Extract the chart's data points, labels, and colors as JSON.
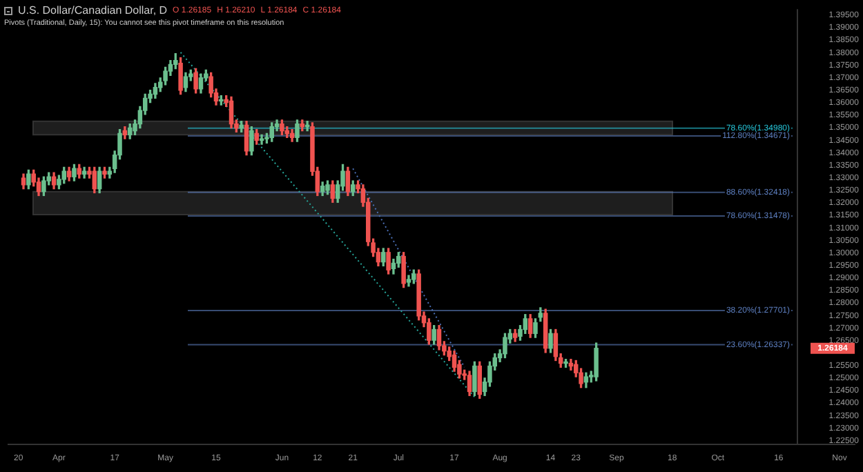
{
  "chart_data": {
    "type": "candlestick",
    "title": "U.S. Dollar/Canadian Dollar, D",
    "subtitle": "Pivots (Traditional, Daily, 15): You cannot see this pivot timeframe on this resolution",
    "annotations": [
      "O 1.26185",
      "H 1.26210",
      "L 1.26184",
      "C 1.26184",
      "1.26184"
    ],
    "categories": [
      null,
      null,
      "20",
      null,
      null,
      null,
      null,
      null,
      null,
      null,
      "Apr",
      null,
      null,
      null,
      null,
      null,
      null,
      null,
      null,
      null,
      null,
      "17",
      null,
      null,
      null,
      null,
      null,
      null,
      null,
      null,
      null,
      "May",
      null,
      null,
      null,
      null,
      null,
      null,
      null,
      null,
      null,
      "15",
      null,
      null,
      null,
      null,
      null,
      null,
      null,
      null,
      null,
      null,
      null,
      null,
      "Jun",
      null,
      null,
      null,
      null,
      null,
      null,
      "12",
      null,
      null,
      null,
      null,
      null,
      null,
      "21",
      null,
      null,
      null,
      null,
      null,
      null,
      null,
      null,
      "Jul",
      null,
      null,
      null,
      null,
      null,
      null,
      null,
      null,
      null,
      null,
      "17",
      null,
      null,
      null,
      null,
      null,
      null,
      null,
      null,
      "Aug",
      null,
      null,
      null,
      null,
      null,
      null,
      null,
      null,
      null,
      "14",
      null,
      null,
      null,
      null,
      "23",
      null,
      null,
      null,
      null,
      null,
      null,
      null,
      "Sep",
      null,
      null,
      null,
      null,
      null,
      null,
      null,
      null,
      null,
      null,
      "18",
      null,
      null,
      null,
      null,
      null,
      null,
      null,
      null,
      "Oct",
      null,
      null,
      null,
      null,
      null,
      null,
      null,
      null,
      null,
      null,
      null,
      "16",
      null,
      null,
      null,
      null,
      null,
      null,
      null,
      null,
      null,
      null,
      null,
      "Nov",
      null,
      null,
      null
    ],
    "ohlc": [
      null,
      null,
      null,
      [
        1.3299,
        1.3315,
        1.3256,
        1.3272
      ],
      [
        1.3272,
        1.3331,
        1.3256,
        1.3315
      ],
      [
        1.3315,
        1.3331,
        1.3267,
        1.3283
      ],
      [
        1.3283,
        1.3299,
        1.3229,
        1.3245
      ],
      [
        1.3245,
        1.3304,
        1.3229,
        1.3288
      ],
      [
        1.3288,
        1.3321,
        1.3272,
        1.3304
      ],
      [
        1.3304,
        1.3321,
        1.3256,
        1.3272
      ],
      [
        1.3272,
        1.331,
        1.3256,
        1.3294
      ],
      [
        1.3294,
        1.3342,
        1.3278,
        1.3326
      ],
      [
        1.3326,
        1.3342,
        1.3288,
        1.3304
      ],
      [
        1.3304,
        1.3353,
        1.3288,
        1.3337
      ],
      [
        1.3337,
        1.3353,
        1.3299,
        1.3315
      ],
      [
        1.3315,
        1.3342,
        1.3299,
        1.3326
      ],
      [
        1.3326,
        1.3342,
        1.3299,
        1.3315
      ],
      [
        1.3326,
        1.3342,
        1.324,
        1.3256
      ],
      [
        1.3256,
        1.3342,
        1.324,
        1.3326
      ],
      [
        1.3326,
        1.3342,
        1.3299,
        1.3315
      ],
      [
        1.3315,
        1.3342,
        1.3299,
        1.3326
      ],
      [
        1.3337,
        1.3407,
        1.3321,
        1.3391
      ],
      [
        1.3391,
        1.3493,
        1.3375,
        1.3477
      ],
      [
        1.3488,
        1.3504,
        1.3456,
        1.3472
      ],
      [
        1.3472,
        1.3515,
        1.3456,
        1.3499
      ],
      [
        1.3488,
        1.3531,
        1.3472,
        1.3515
      ],
      [
        1.3515,
        1.3585,
        1.3499,
        1.3569
      ],
      [
        1.3569,
        1.3634,
        1.3553,
        1.3618
      ],
      [
        1.3618,
        1.365,
        1.3601,
        1.3634
      ],
      [
        1.3634,
        1.3677,
        1.3618,
        1.3661
      ],
      [
        1.3661,
        1.3699,
        1.3645,
        1.3682
      ],
      [
        1.3688,
        1.3742,
        1.3672,
        1.3726
      ],
      [
        1.3726,
        1.3769,
        1.3709,
        1.3753
      ],
      [
        1.3753,
        1.3796,
        1.3736,
        1.3769
      ],
      [
        1.3758,
        1.378,
        1.3634,
        1.365
      ],
      [
        1.3661,
        1.372,
        1.3645,
        1.3704
      ],
      [
        1.3704,
        1.3731,
        1.3688,
        1.3715
      ],
      [
        1.372,
        1.3736,
        1.3639,
        1.3655
      ],
      [
        1.3655,
        1.3715,
        1.3639,
        1.3699
      ],
      [
        1.3699,
        1.3731,
        1.3688,
        1.3715
      ],
      [
        1.3704,
        1.372,
        1.3623,
        1.3639
      ],
      [
        1.3639,
        1.3655,
        1.3591,
        1.3607
      ],
      [
        1.3607,
        1.3628,
        1.3591,
        1.3612
      ],
      [
        1.3612,
        1.3628,
        1.3585,
        1.3601
      ],
      [
        1.3607,
        1.3623,
        1.3499,
        1.3515
      ],
      [
        1.3515,
        1.3531,
        1.3483,
        1.3499
      ],
      [
        1.3499,
        1.3526,
        1.3483,
        1.351
      ],
      [
        1.351,
        1.3526,
        1.3391,
        1.3407
      ],
      [
        1.3407,
        1.3504,
        1.3391,
        1.3488
      ],
      [
        1.3477,
        1.3493,
        1.3434,
        1.345
      ],
      [
        1.345,
        1.3472,
        1.3434,
        1.3456
      ],
      [
        1.3456,
        1.3477,
        1.3439,
        1.3461
      ],
      [
        1.3461,
        1.352,
        1.3445,
        1.3504
      ],
      [
        1.3504,
        1.3531,
        1.3488,
        1.3515
      ],
      [
        1.3515,
        1.3531,
        1.3472,
        1.3488
      ],
      [
        1.3488,
        1.3504,
        1.3461,
        1.3477
      ],
      [
        1.3477,
        1.3493,
        1.3445,
        1.3461
      ],
      [
        1.3461,
        1.3531,
        1.3445,
        1.3515
      ],
      [
        1.3515,
        1.3531,
        1.3488,
        1.3504
      ],
      [
        1.3504,
        1.3526,
        1.3488,
        1.351
      ],
      [
        1.3504,
        1.352,
        1.331,
        1.3326
      ],
      [
        1.3326,
        1.3342,
        1.3229,
        1.3245
      ],
      [
        1.3245,
        1.3283,
        1.3229,
        1.3267
      ],
      [
        1.325,
        1.3288,
        1.3234,
        1.3272
      ],
      [
        1.3272,
        1.3288,
        1.3202,
        1.3218
      ],
      [
        1.3218,
        1.3288,
        1.3202,
        1.3272
      ],
      [
        1.3267,
        1.3353,
        1.325,
        1.3326
      ],
      [
        1.3326,
        1.3342,
        1.3229,
        1.3245
      ],
      [
        1.3245,
        1.3288,
        1.3229,
        1.3272
      ],
      [
        1.3272,
        1.3288,
        1.324,
        1.3256
      ],
      [
        1.3256,
        1.3272,
        1.3186,
        1.3202
      ],
      [
        1.3202,
        1.3218,
        1.3029,
        1.3045
      ],
      [
        1.304,
        1.3056,
        1.2986,
        1.3002
      ],
      [
        1.3002,
        1.3018,
        1.2948,
        1.2964
      ],
      [
        1.2964,
        1.3018,
        1.2948,
        1.3002
      ],
      [
        1.3002,
        1.3018,
        1.2916,
        1.2932
      ],
      [
        1.2937,
        1.2975,
        1.2916,
        1.2959
      ],
      [
        1.2959,
        1.3002,
        1.2943,
        1.2986
      ],
      [
        1.2986,
        1.3002,
        1.2862,
        1.2878
      ],
      [
        1.2883,
        1.291,
        1.2867,
        1.2894
      ],
      [
        1.2894,
        1.2932,
        1.2878,
        1.2916
      ],
      [
        1.2916,
        1.2932,
        1.2732,
        1.2748
      ],
      [
        1.2748,
        1.2764,
        1.2705,
        1.2721
      ],
      [
        1.2721,
        1.2737,
        1.2635,
        1.2651
      ],
      [
        1.2651,
        1.271,
        1.2635,
        1.2694
      ],
      [
        1.2694,
        1.271,
        1.2613,
        1.2629
      ],
      [
        1.2629,
        1.2646,
        1.2592,
        1.2608
      ],
      [
        1.2608,
        1.2624,
        1.257,
        1.2586
      ],
      [
        1.2592,
        1.2608,
        1.2527,
        1.2543
      ],
      [
        1.2554,
        1.257,
        1.25,
        1.2516
      ],
      [
        1.2516,
        1.2532,
        1.2494,
        1.2511
      ],
      [
        1.2511,
        1.2527,
        1.243,
        1.2446
      ],
      [
        1.2446,
        1.2565,
        1.243,
        1.2548
      ],
      [
        1.2548,
        1.2565,
        1.2419,
        1.2435
      ],
      [
        1.2446,
        1.25,
        1.243,
        1.2484
      ],
      [
        1.2484,
        1.2565,
        1.2467,
        1.2548
      ],
      [
        1.2548,
        1.2597,
        1.2532,
        1.2581
      ],
      [
        1.2581,
        1.2613,
        1.2565,
        1.2597
      ],
      [
        1.2597,
        1.2678,
        1.2581,
        1.2662
      ],
      [
        1.2656,
        1.2694,
        1.264,
        1.2678
      ],
      [
        1.2678,
        1.2694,
        1.2646,
        1.2662
      ],
      [
        1.2667,
        1.271,
        1.2651,
        1.2694
      ],
      [
        1.2694,
        1.2754,
        1.2678,
        1.2737
      ],
      [
        1.2737,
        1.2754,
        1.2662,
        1.2678
      ],
      [
        1.2678,
        1.2737,
        1.2662,
        1.2721
      ],
      [
        1.2743,
        1.2781,
        1.2727,
        1.2759
      ],
      [
        1.2759,
        1.2775,
        1.2602,
        1.2619
      ],
      [
        1.2619,
        1.2694,
        1.2602,
        1.2678
      ],
      [
        1.2678,
        1.2694,
        1.257,
        1.2586
      ],
      [
        1.2581,
        1.2597,
        1.2543,
        1.2559
      ],
      [
        1.2559,
        1.2575,
        1.2543,
        1.2562
      ],
      [
        1.2559,
        1.2575,
        1.2532,
        1.2548
      ],
      [
        1.2554,
        1.257,
        1.2505,
        1.2521
      ],
      [
        1.2521,
        1.2538,
        1.2462,
        1.2478
      ],
      [
        1.2484,
        1.2521,
        1.2462,
        1.2505
      ],
      [
        1.2505,
        1.2527,
        1.2484,
        1.2511
      ],
      [
        1.2505,
        1.264,
        1.2489,
        1.2619
      ],
      null,
      null,
      null,
      null,
      null,
      null,
      null,
      null,
      null,
      null,
      null,
      null,
      null,
      null,
      null,
      null,
      null,
      null,
      null,
      null,
      null,
      null,
      null,
      null,
      null,
      null,
      null,
      null,
      null,
      null,
      null,
      null,
      null,
      null,
      null,
      null,
      null,
      null,
      null,
      null,
      null,
      null,
      null,
      null,
      null,
      null,
      null,
      null,
      null,
      null,
      null
    ],
    "colors": [
      null,
      null,
      null,
      "#ef5350",
      "#6bbf8e",
      "#ef5350",
      "#ef5350",
      "#6bbf8e",
      "#6bbf8e",
      "#ef5350",
      "#6bbf8e",
      "#6bbf8e",
      "#ef5350",
      "#6bbf8e",
      "#ef5350",
      "#6bbf8e",
      "#ef5350",
      "#ef5350",
      "#6bbf8e",
      "#ef5350",
      "#6bbf8e",
      "#6bbf8e",
      "#6bbf8e",
      "#ef5350",
      "#6bbf8e",
      "#6bbf8e",
      "#6bbf8e",
      "#6bbf8e",
      "#6bbf8e",
      "#6bbf8e",
      "#6bbf8e",
      "#6bbf8e",
      "#6bbf8e",
      "#6bbf8e",
      "#ef5350",
      "#6bbf8e",
      "#6bbf8e",
      "#ef5350",
      "#6bbf8e",
      "#6bbf8e",
      "#ef5350",
      "#ef5350",
      "#6bbf8e",
      "#ef5350",
      "#ef5350",
      "#ef5350",
      "#6bbf8e",
      "#ef5350",
      "#6bbf8e",
      "#ef5350",
      "#6bbf8e",
      "#6bbf8e",
      "#6bbf8e",
      "#6bbf8e",
      "#ef5350",
      "#ef5350",
      "#ef5350",
      "#6bbf8e",
      "#ef5350",
      "#6bbf8e",
      "#ef5350",
      "#ef5350",
      "#6bbf8e",
      "#6bbf8e",
      "#ef5350",
      "#6bbf8e",
      "#6bbf8e",
      "#ef5350",
      "#6bbf8e",
      "#ef5350",
      "#ef5350",
      "#ef5350",
      "#ef5350",
      "#ef5350",
      "#6bbf8e",
      "#ef5350",
      "#6bbf8e",
      "#6bbf8e",
      "#ef5350",
      "#6bbf8e",
      "#6bbf8e",
      "#ef5350",
      "#ef5350",
      "#ef5350",
      "#6bbf8e",
      "#ef5350",
      "#ef5350",
      "#ef5350",
      "#ef5350",
      "#ef5350",
      "#ef5350",
      "#ef5350",
      "#6bbf8e",
      "#ef5350",
      "#6bbf8e",
      "#6bbf8e",
      "#6bbf8e",
      "#6bbf8e",
      "#6bbf8e",
      "#6bbf8e",
      "#ef5350",
      "#6bbf8e",
      "#6bbf8e",
      "#ef5350",
      "#6bbf8e",
      "#6bbf8e",
      "#ef5350",
      "#6bbf8e",
      "#ef5350",
      "#ef5350",
      "#6bbf8e",
      "#ef5350",
      "#ef5350",
      "#ef5350",
      "#6bbf8e",
      "#6bbf8e",
      "#6bbf8e",
      null,
      null,
      null,
      null,
      null,
      null,
      null,
      null,
      null,
      null,
      null,
      null,
      null,
      null,
      null,
      null,
      null,
      null,
      null,
      null,
      null,
      null,
      null,
      null,
      null,
      null,
      null,
      null,
      null,
      null,
      null,
      null,
      null,
      null,
      null,
      null,
      null,
      null,
      null,
      null,
      null,
      null,
      null,
      null,
      null,
      null,
      null,
      null,
      null,
      null,
      null
    ],
    "series": [
      {
        "type": "line",
        "color": "#26a69a",
        "line_style": "dotted",
        "values": [
          null,
          null,
          null,
          null,
          null,
          null,
          null,
          null,
          null,
          null,
          null,
          null,
          null,
          null,
          null,
          null,
          null,
          null,
          null,
          null,
          null,
          null,
          null,
          null,
          null,
          null,
          null,
          null,
          null,
          null,
          null,
          null,
          null,
          null,
          1.3801,
          null,
          null,
          null,
          null,
          null,
          null,
          null,
          null,
          null,
          null,
          null,
          null,
          null,
          null,
          null,
          null,
          null,
          null,
          null,
          null,
          null,
          null,
          null,
          null,
          null,
          null,
          null,
          null,
          null,
          null,
          null,
          null,
          null,
          null,
          null,
          null,
          null,
          null,
          null,
          null,
          null,
          null,
          null,
          null,
          null,
          null,
          null,
          null,
          null,
          null,
          null,
          null,
          null,
          null,
          null,
          null,
          null,
          1.2424,
          null,
          null,
          null,
          null,
          null,
          null,
          null,
          null,
          null,
          null,
          null,
          null,
          null,
          null,
          null,
          null,
          null,
          null,
          null,
          null,
          null,
          null,
          null,
          null,
          null,
          null,
          null,
          null,
          null,
          null,
          null,
          null,
          null,
          null,
          null,
          null,
          null,
          null,
          null,
          null,
          null,
          null,
          null,
          null,
          null,
          null,
          null,
          null,
          null,
          null,
          null,
          null,
          null,
          null,
          null,
          null,
          null,
          null,
          null,
          null,
          null,
          null,
          null,
          null,
          null,
          null,
          null,
          null,
          null,
          null,
          null,
          null,
          null,
          null,
          null
        ]
      },
      {
        "type": "line",
        "color": "#4a6fb5",
        "line_style": "dotted",
        "values": [
          null,
          null,
          null,
          null,
          null,
          null,
          null,
          null,
          null,
          null,
          null,
          null,
          null,
          null,
          null,
          null,
          null,
          null,
          null,
          null,
          null,
          null,
          null,
          null,
          null,
          null,
          null,
          null,
          null,
          null,
          null,
          null,
          null,
          null,
          null,
          null,
          null,
          null,
          null,
          null,
          null,
          null,
          null,
          null,
          null,
          null,
          null,
          null,
          null,
          null,
          null,
          null,
          null,
          null,
          null,
          null,
          null,
          null,
          null,
          null,
          null,
          null,
          null,
          null,
          null,
          null,
          null,
          null,
          1.3337,
          null,
          null,
          null,
          null,
          null,
          null,
          null,
          null,
          null,
          null,
          null,
          null,
          null,
          null,
          null,
          null,
          null,
          null,
          null,
          null,
          null,
          1.2543,
          null,
          null,
          null,
          null,
          null,
          null,
          null,
          null,
          null,
          null,
          null,
          null,
          null,
          null,
          null,
          null,
          null,
          null,
          null,
          null,
          null,
          null,
          null,
          null,
          null,
          null,
          null,
          null,
          null,
          null,
          null,
          null,
          null,
          null,
          null,
          null,
          null,
          null,
          null,
          null,
          null,
          null,
          null,
          null,
          null,
          null,
          null,
          null,
          null,
          null,
          null,
          null,
          null,
          null,
          null,
          null,
          null,
          null,
          null,
          null,
          null,
          null,
          null,
          null,
          null,
          null,
          null,
          null,
          null,
          null,
          null,
          null,
          null,
          null,
          null,
          null,
          null
        ]
      }
    ],
    "ylim": [
      1.2235,
      1.3974
    ],
    "yticks": [
      {
        "value": 1.225,
        "label": "1.22500"
      },
      {
        "value": 1.23,
        "label": "1.23000"
      },
      {
        "value": 1.235,
        "label": "1.23500"
      },
      {
        "value": 1.24,
        "label": "1.24000"
      },
      {
        "value": 1.245,
        "label": "1.24500"
      },
      {
        "value": 1.25,
        "label": "1.25000"
      },
      {
        "value": 1.255,
        "label": "1.25500"
      },
      {
        "value": 1.265,
        "label": "1.26500"
      },
      {
        "value": 1.27,
        "label": "1.27000"
      },
      {
        "value": 1.275,
        "label": "1.27500"
      },
      {
        "value": 1.28,
        "label": "1.28000"
      },
      {
        "value": 1.285,
        "label": "1.28500"
      },
      {
        "value": 1.29,
        "label": "1.29000"
      },
      {
        "value": 1.295,
        "label": "1.29500"
      },
      {
        "value": 1.3,
        "label": "1.30000"
      },
      {
        "value": 1.305,
        "label": "1.30500"
      },
      {
        "value": 1.31,
        "label": "1.31000"
      },
      {
        "value": 1.315,
        "label": "1.31500"
      },
      {
        "value": 1.32,
        "label": "1.32000"
      },
      {
        "value": 1.325,
        "label": "1.32500"
      },
      {
        "value": 1.33,
        "label": "1.33000"
      },
      {
        "value": 1.335,
        "label": "1.33500"
      },
      {
        "value": 1.34,
        "label": "1.34000"
      },
      {
        "value": 1.345,
        "label": "1.34500"
      },
      {
        "value": 1.35,
        "label": "1.35000"
      },
      {
        "value": 1.355,
        "label": "1.35500"
      },
      {
        "value": 1.36,
        "label": "1.36000"
      },
      {
        "value": 1.365,
        "label": "1.36500"
      },
      {
        "value": 1.37,
        "label": "1.37000"
      },
      {
        "value": 1.375,
        "label": "1.37500"
      },
      {
        "value": 1.38,
        "label": "1.38000"
      },
      {
        "value": 1.385,
        "label": "1.38500"
      },
      {
        "value": 1.39,
        "label": "1.39000"
      },
      {
        "value": 1.395,
        "label": "1.39500"
      }
    ],
    "ref_lines": [
      {
        "axis": "y",
        "value": 1.3498,
        "label": "78.60%(1.34980)",
        "color": "#26c6da"
      },
      {
        "axis": "y",
        "value": 1.34671,
        "label": "112.80%(1.34671)",
        "color": "#5d7fc0"
      },
      {
        "axis": "y",
        "value": 1.32418,
        "label": "88.60%(1.32418)",
        "color": "#5d7fc0"
      },
      {
        "axis": "y",
        "value": 1.31478,
        "label": "78.60%(1.31478)",
        "color": "#5d7fc0"
      },
      {
        "axis": "y",
        "value": 1.27701,
        "label": "38.20%(1.27701)",
        "color": "#5d7fc0"
      },
      {
        "axis": "y",
        "value": 1.26337,
        "label": "23.60%(1.26337)",
        "color": "#5d7fc0"
      }
    ],
    "bands": [
      {
        "axis": "y",
        "from": 1.3472,
        "to": 1.3526,
        "color": "#1e1e1e"
      },
      {
        "axis": "y",
        "from": 1.3153,
        "to": 1.3245,
        "color": "#1e1e1e"
      }
    ]
  }
}
